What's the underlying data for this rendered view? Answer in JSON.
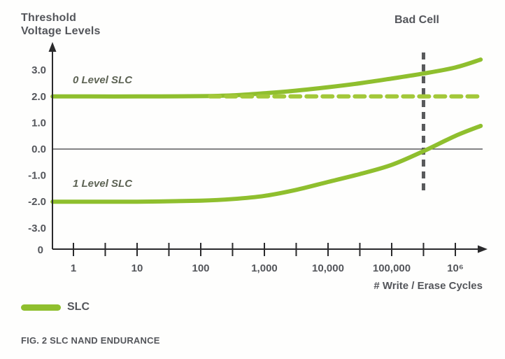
{
  "title": {
    "line1": "Threshold",
    "line2": "Voltage Levels"
  },
  "annotations": {
    "bad_cell": "Bad Cell",
    "level0": "0 Level SLC",
    "level1": "1 Level SLC"
  },
  "legend": {
    "label": "SLC"
  },
  "caption": "FIG. 2 SLC NAND ENDURANCE",
  "colors": {
    "line_green": "#8fbf2e",
    "dashed_green": "#a3c839",
    "axis": "#2a2a2c",
    "zero_line": "#3c3c3e",
    "bad_cell_line": "#58595b",
    "text_gray": "#54565b"
  },
  "chart_data": {
    "type": "line",
    "title": "",
    "xlabel": "# Write / Erase Cycles",
    "ylabel": "Threshold Voltage Levels",
    "x_scale": "log10",
    "ylim": [
      -3.6,
      3.8
    ],
    "grid": false,
    "legend_position": "bottom-left",
    "origin_label": "0",
    "x_ticks": [
      {
        "value": 1,
        "label": "1"
      },
      {
        "value": 10,
        "label": "10"
      },
      {
        "value": 100,
        "label": "100"
      },
      {
        "value": 1000,
        "label": "1,000"
      },
      {
        "value": 10000,
        "label": "10,000"
      },
      {
        "value": 100000,
        "label": "100,000"
      },
      {
        "value": 1000000,
        "label": "10⁶"
      }
    ],
    "x_minor_ticks": [
      3.16,
      31.6,
      316,
      3160,
      31600,
      316000
    ],
    "y_ticks": [
      {
        "value": 3,
        "label": "3.0"
      },
      {
        "value": 2,
        "label": "2.0"
      },
      {
        "value": 1,
        "label": "1.0"
      },
      {
        "value": 0,
        "label": "0.0"
      },
      {
        "value": -1,
        "label": "-1.0"
      },
      {
        "value": -2,
        "label": "-2.0"
      },
      {
        "value": -3,
        "label": "-3.0"
      }
    ],
    "series": [
      {
        "name": "0 Level SLC",
        "style": "solid",
        "color": "#8fbf2e",
        "points": [
          [
            0.47,
            2.0
          ],
          [
            1,
            2.0
          ],
          [
            10,
            2.0
          ],
          [
            100,
            2.01
          ],
          [
            316,
            2.04
          ],
          [
            1000,
            2.12
          ],
          [
            3160,
            2.22
          ],
          [
            10000,
            2.35
          ],
          [
            31600,
            2.5
          ],
          [
            100000,
            2.68
          ],
          [
            316000,
            2.87
          ],
          [
            1000000,
            3.1
          ],
          [
            2500000,
            3.4
          ]
        ]
      },
      {
        "name": "1 Level SLC",
        "style": "solid",
        "color": "#8fbf2e",
        "points": [
          [
            0.47,
            -2.0
          ],
          [
            1,
            -2.0
          ],
          [
            10,
            -2.0
          ],
          [
            100,
            -1.96
          ],
          [
            316,
            -1.9
          ],
          [
            1000,
            -1.78
          ],
          [
            3160,
            -1.55
          ],
          [
            10000,
            -1.25
          ],
          [
            31600,
            -0.95
          ],
          [
            100000,
            -0.6
          ],
          [
            316000,
            -0.08
          ],
          [
            1000000,
            0.5
          ],
          [
            2500000,
            0.88
          ]
        ]
      },
      {
        "name": "0 Level SLC nominal (dashed)",
        "style": "dashed",
        "color": "#a3c839",
        "points": [
          [
            140,
            2.0
          ],
          [
            2500000,
            2.0
          ]
        ]
      }
    ],
    "annotations": {
      "bad_cell_line": {
        "x": 316000,
        "label": "Bad Cell",
        "style": "dashed-vertical"
      }
    }
  }
}
